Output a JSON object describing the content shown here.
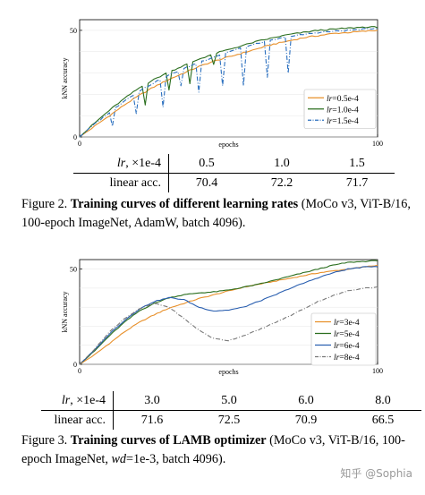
{
  "figure2": {
    "chart_data": {
      "type": "line",
      "xlabel": "epochs",
      "ylabel": "kNN accuracy",
      "xlim": [
        0,
        100
      ],
      "ylim": [
        0,
        55
      ],
      "x_ticks": [
        "0",
        "100"
      ],
      "y_ticks": [
        "0",
        "50"
      ],
      "legend_position": "bottom-right",
      "series": [
        {
          "name": "lr=0.5e-4",
          "color": "#e8902a",
          "style": "solid",
          "x": [
            0,
            5,
            10,
            15,
            20,
            25,
            30,
            35,
            40,
            45,
            50,
            55,
            60,
            65,
            70,
            75,
            80,
            85,
            90,
            95,
            100
          ],
          "y": [
            0,
            5,
            10,
            15,
            19.5,
            23.5,
            27,
            30,
            33,
            35.5,
            37.5,
            39.5,
            41.5,
            43.5,
            45,
            46.5,
            47.5,
            48.5,
            49,
            49.5,
            50
          ]
        },
        {
          "name": "lr=1.0e-4",
          "color": "#2a6e1e",
          "style": "solid",
          "x": [
            0,
            5,
            10,
            15,
            20,
            25,
            30,
            35,
            40,
            45,
            50,
            55,
            60,
            65,
            70,
            75,
            80,
            85,
            90,
            95,
            100
          ],
          "y": [
            0,
            6.5,
            12.5,
            18,
            23,
            27,
            30.5,
            33.5,
            36.5,
            39,
            41,
            43,
            45,
            46.5,
            48,
            49,
            50,
            50.5,
            51,
            51.5,
            51.5
          ],
          "dips": [
            [
              22,
              15
            ],
            [
              30,
              22
            ],
            [
              37,
              25
            ],
            [
              45,
              34
            ]
          ]
        },
        {
          "name": "lr=1.5e-4",
          "color": "#2a6fbf",
          "style": "dashdot",
          "x": [
            0,
            5,
            10,
            15,
            20,
            25,
            30,
            35,
            40,
            45,
            50,
            55,
            60,
            65,
            70,
            75,
            80,
            85,
            90,
            95,
            100
          ],
          "y": [
            0,
            6,
            11.5,
            17,
            21.5,
            25.5,
            29,
            32,
            35,
            37.5,
            40,
            42,
            44,
            45.5,
            47,
            48,
            49,
            49.5,
            50,
            50.5,
            51
          ],
          "dips": [
            [
              11,
              5
            ],
            [
              19,
              11
            ],
            [
              28,
              14
            ],
            [
              34,
              24
            ],
            [
              40,
              21
            ],
            [
              48,
              24
            ],
            [
              55,
              24
            ],
            [
              63,
              28
            ],
            [
              70,
              30
            ]
          ]
        }
      ]
    },
    "table": {
      "row1_header": "lr, ×1e-4",
      "values": [
        "0.5",
        "1.0",
        "1.5"
      ],
      "row2_header": "linear acc.",
      "accs": [
        "70.4",
        "72.2",
        "71.7"
      ]
    },
    "caption": {
      "prefix": "Figure 2.",
      "bold": "Training curves of different learning rates",
      "rest": " (MoCo v3, ViT-B/16, 100-epoch ImageNet, AdamW, batch 4096)."
    }
  },
  "figure3": {
    "chart_data": {
      "type": "line",
      "xlabel": "epochs",
      "ylabel": "kNN accuracy",
      "xlim": [
        0,
        100
      ],
      "ylim": [
        0,
        55
      ],
      "x_ticks": [
        "0",
        "100"
      ],
      "y_ticks": [
        "0",
        "50"
      ],
      "legend_position": "bottom-right",
      "series": [
        {
          "name": "lr=3e-4",
          "color": "#e8902a",
          "style": "solid",
          "x": [
            0,
            5,
            10,
            15,
            20,
            25,
            30,
            35,
            40,
            45,
            50,
            55,
            60,
            65,
            70,
            75,
            80,
            85,
            90,
            95,
            100
          ],
          "y": [
            0,
            5,
            11,
            17,
            22,
            26,
            29.5,
            32,
            34.5,
            36.5,
            38.5,
            40.5,
            42,
            43.5,
            45,
            46.5,
            48,
            49,
            50,
            51,
            52
          ]
        },
        {
          "name": "lr=5e-4",
          "color": "#2a6e1e",
          "style": "solid",
          "x": [
            0,
            5,
            10,
            15,
            20,
            25,
            30,
            35,
            40,
            45,
            50,
            55,
            60,
            65,
            70,
            75,
            80,
            85,
            90,
            95,
            100
          ],
          "y": [
            0,
            7,
            15,
            22,
            28,
            32,
            35,
            36.5,
            37.5,
            38,
            39,
            40.5,
            42,
            44,
            46,
            48,
            50,
            52,
            53.5,
            54,
            54.5
          ]
        },
        {
          "name": "lr=6e-4",
          "color": "#2a5fb0",
          "style": "solid",
          "x": [
            0,
            5,
            10,
            15,
            20,
            25,
            30,
            35,
            40,
            45,
            50,
            55,
            60,
            65,
            70,
            75,
            80,
            85,
            90,
            95,
            100
          ],
          "y": [
            0,
            7.5,
            16,
            23,
            29,
            33,
            35,
            34,
            30,
            28,
            28.5,
            30,
            33,
            36,
            39.5,
            42.5,
            45.5,
            48,
            50,
            51,
            51.5
          ]
        },
        {
          "name": "lr=8e-4",
          "color": "#777777",
          "style": "dashdot",
          "x": [
            0,
            5,
            10,
            15,
            20,
            25,
            30,
            35,
            40,
            45,
            50,
            55,
            60,
            65,
            70,
            75,
            80,
            85,
            90,
            95,
            100
          ],
          "y": [
            0,
            8,
            17,
            24,
            29,
            32,
            30,
            24,
            18,
            13.5,
            12.5,
            15,
            18,
            21.5,
            25,
            29,
            33,
            36,
            38.5,
            40,
            40.5
          ]
        }
      ]
    },
    "table": {
      "row1_header": "lr, ×1e-4",
      "values": [
        "3.0",
        "5.0",
        "6.0",
        "8.0"
      ],
      "row2_header": "linear acc.",
      "accs": [
        "71.6",
        "72.5",
        "70.9",
        "66.5"
      ]
    },
    "caption": {
      "prefix": "Figure 3.",
      "bold": "Training curves of LAMB optimizer",
      "rest_a": " (MoCo v3, ViT-B/16, 100-epoch ImageNet, ",
      "rest_it": "wd",
      "rest_b": "=1e-3, batch 4096)."
    }
  },
  "watermark": "知乎 @Sophia"
}
